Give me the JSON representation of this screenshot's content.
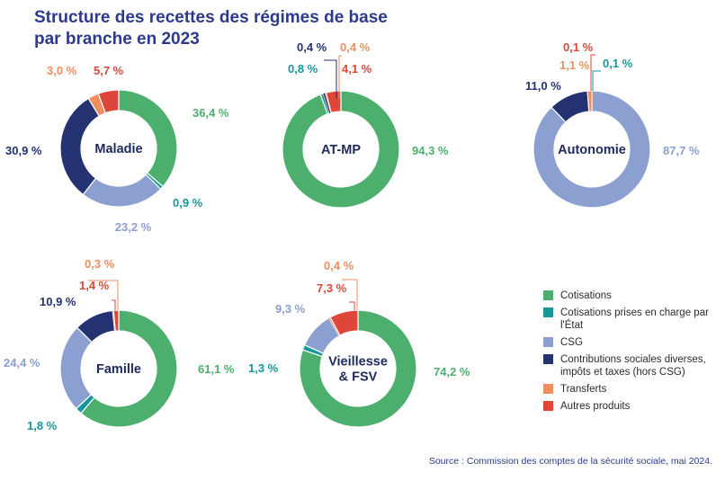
{
  "title_lines": [
    "Structure des recettes des régimes de base",
    "par branche en 2023"
  ],
  "source": "Source : Commission des comptes de la sécurité sociale, mai 2024.",
  "colors": {
    "cotisations": "#4caf6e",
    "cotisations_etat": "#15979b",
    "csg": "#8b9fd1",
    "contributions": "#243272",
    "transferts": "#ef8e5f",
    "autres": "#dd4638"
  },
  "legend": [
    {
      "key": "cotisations",
      "label": "Cotisations"
    },
    {
      "key": "cotisations_etat",
      "label": "Cotisations prises en charge par l'État"
    },
    {
      "key": "csg",
      "label": "CSG"
    },
    {
      "key": "contributions",
      "label": "Contributions sociales diverses, impôts et taxes (hors CSG)"
    },
    {
      "key": "transferts",
      "label": "Transferts"
    },
    {
      "key": "autres",
      "label": "Autres produits"
    }
  ],
  "chart_data": [
    {
      "type": "pie",
      "name": "Maladie",
      "categories": [
        "Cotisations",
        "Cotisations prises en charge par l'État",
        "CSG",
        "Contributions sociales diverses, impôts et taxes (hors CSG)",
        "Transferts",
        "Autres produits"
      ],
      "values": [
        36.4,
        0.9,
        23.2,
        30.9,
        3.0,
        5.7
      ],
      "labels": [
        "36,4 %",
        "0,9 %",
        "23,2 %",
        "30,9 %",
        "3,0 %",
        "5,7 %"
      ]
    },
    {
      "type": "pie",
      "name": "AT-MP",
      "categories": [
        "Cotisations",
        "Cotisations prises en charge par l'État",
        "CSG",
        "Contributions sociales diverses, impôts et taxes (hors CSG)",
        "Transferts",
        "Autres produits"
      ],
      "values": [
        94.3,
        0.8,
        0,
        0.4,
        0.4,
        4.1
      ],
      "labels": [
        "94,3 %",
        "0,8 %",
        "",
        "0,4 %",
        "0,4 %",
        "4,1 %"
      ]
    },
    {
      "type": "pie",
      "name": "Autonomie",
      "categories": [
        "Cotisations",
        "Cotisations prises en charge par l'État",
        "CSG",
        "Contributions sociales diverses, impôts et taxes (hors CSG)",
        "Transferts",
        "Autres produits"
      ],
      "values": [
        0,
        0.1,
        87.7,
        11.0,
        1.1,
        0.1
      ],
      "labels": [
        "",
        "0,1 %",
        "87,7 %",
        "11,0 %",
        "1,1 %",
        "0,1 %"
      ]
    },
    {
      "type": "pie",
      "name": "Famille",
      "categories": [
        "Cotisations",
        "Cotisations prises en charge par l'État",
        "CSG",
        "Contributions sociales diverses, impôts et taxes (hors CSG)",
        "Transferts",
        "Autres produits"
      ],
      "values": [
        61.1,
        1.8,
        24.4,
        10.9,
        0.3,
        1.4
      ],
      "labels": [
        "61,1 %",
        "1,8 %",
        "24,4 %",
        "10,9 %",
        "0,3 %",
        "1,4 %"
      ]
    },
    {
      "type": "pie",
      "name": "Vieillesse & FSV",
      "name_lines": [
        "Vieillesse",
        "& FSV"
      ],
      "categories": [
        "Cotisations",
        "Cotisations prises en charge par l'État",
        "CSG",
        "Contributions sociales diverses, impôts et taxes (hors CSG)",
        "Transferts",
        "Autres produits"
      ],
      "values": [
        74.2,
        1.3,
        9.3,
        0,
        0.4,
        7.3
      ],
      "labels": [
        "74,2 %",
        "1,3 %",
        "9,3 %",
        "",
        "0,4 %",
        "7,3 %"
      ]
    }
  ]
}
